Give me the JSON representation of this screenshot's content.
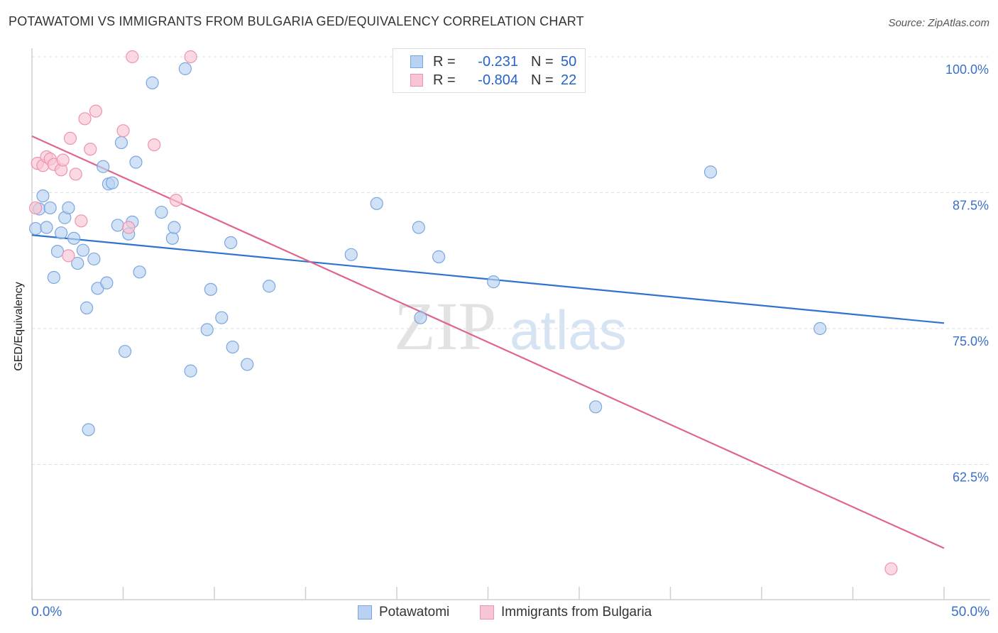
{
  "title": "POTAWATOMI VS IMMIGRANTS FROM BULGARIA GED/EQUIVALENCY CORRELATION CHART",
  "source": "Source: ZipAtlas.com",
  "watermark": {
    "zip": "ZIP",
    "atlas": "atlas"
  },
  "legend": {
    "rows": [
      {
        "r_label": "R =",
        "r_value": "-0.231",
        "n_label": "N =",
        "n_value": "50"
      },
      {
        "r_label": "R =",
        "r_value": "-0.804",
        "n_label": "N =",
        "n_value": "22"
      }
    ]
  },
  "colors": {
    "blue_fill": "#b9d2f2",
    "blue_stroke": "#7aa6df",
    "blue_line": "#2f72cf",
    "pink_fill": "#f7c5d3",
    "pink_stroke": "#ee93ae",
    "pink_line": "#e0648d",
    "tick_label": "#3a6fc9",
    "grid": "#dddddd"
  },
  "chart_data": {
    "type": "scatter",
    "title": "POTAWATOMI VS IMMIGRANTS FROM BULGARIA GED/EQUIVALENCY CORRELATION CHART",
    "xlabel": "",
    "ylabel": "GED/Equivalency",
    "xlim": [
      0,
      50
    ],
    "ylim": [
      50,
      101
    ],
    "x_tick_labels": [
      "0.0%",
      "50.0%"
    ],
    "y_ticks": [
      62.5,
      75.0,
      87.5,
      100.0
    ],
    "y_tick_labels": [
      "62.5%",
      "75.0%",
      "87.5%",
      "100.0%"
    ],
    "grid": true,
    "legend_position": "top-center",
    "series": [
      {
        "name": "Potawatomi",
        "points": [
          [
            0.2,
            84.2
          ],
          [
            0.4,
            86.0
          ],
          [
            0.6,
            87.2
          ],
          [
            0.8,
            84.3
          ],
          [
            1.0,
            86.1
          ],
          [
            1.2,
            79.7
          ],
          [
            1.4,
            82.1
          ],
          [
            1.6,
            83.8
          ],
          [
            1.8,
            85.2
          ],
          [
            2.0,
            86.1
          ],
          [
            2.3,
            83.3
          ],
          [
            2.5,
            81.0
          ],
          [
            2.8,
            82.2
          ],
          [
            3.0,
            76.9
          ],
          [
            3.1,
            65.7
          ],
          [
            3.4,
            81.4
          ],
          [
            3.6,
            78.7
          ],
          [
            3.9,
            89.9
          ],
          [
            4.1,
            79.2
          ],
          [
            4.2,
            88.3
          ],
          [
            4.4,
            88.4
          ],
          [
            4.7,
            84.5
          ],
          [
            4.9,
            92.1
          ],
          [
            5.1,
            72.9
          ],
          [
            5.3,
            83.7
          ],
          [
            5.5,
            84.8
          ],
          [
            5.7,
            90.3
          ],
          [
            5.9,
            80.2
          ],
          [
            6.6,
            97.6
          ],
          [
            7.1,
            85.7
          ],
          [
            7.7,
            83.3
          ],
          [
            7.8,
            84.3
          ],
          [
            8.4,
            98.9
          ],
          [
            8.7,
            71.1
          ],
          [
            9.6,
            74.9
          ],
          [
            9.8,
            78.6
          ],
          [
            10.4,
            76.0
          ],
          [
            10.9,
            82.9
          ],
          [
            11.0,
            73.3
          ],
          [
            11.8,
            71.7
          ],
          [
            13.0,
            78.9
          ],
          [
            17.5,
            81.8
          ],
          [
            18.9,
            86.5
          ],
          [
            21.2,
            84.3
          ],
          [
            21.3,
            76.0
          ],
          [
            22.3,
            81.6
          ],
          [
            25.3,
            79.3
          ],
          [
            30.9,
            67.8
          ],
          [
            37.2,
            89.4
          ],
          [
            43.2,
            75.0
          ]
        ]
      },
      {
        "name": "Immigrants from Bulgaria",
        "points": [
          [
            0.2,
            86.1
          ],
          [
            0.3,
            90.2
          ],
          [
            0.6,
            90.0
          ],
          [
            0.8,
            90.8
          ],
          [
            1.0,
            90.6
          ],
          [
            1.2,
            90.1
          ],
          [
            1.6,
            89.6
          ],
          [
            1.7,
            90.5
          ],
          [
            2.0,
            81.7
          ],
          [
            2.1,
            92.5
          ],
          [
            2.4,
            89.2
          ],
          [
            2.7,
            84.9
          ],
          [
            2.9,
            94.3
          ],
          [
            3.2,
            91.5
          ],
          [
            3.5,
            95.0
          ],
          [
            5.0,
            93.2
          ],
          [
            5.3,
            84.3
          ],
          [
            5.5,
            100.0
          ],
          [
            6.7,
            91.9
          ],
          [
            7.9,
            86.8
          ],
          [
            8.7,
            100.0
          ],
          [
            47.1,
            52.9
          ]
        ]
      }
    ],
    "trendlines": [
      {
        "series": "Potawatomi",
        "x": [
          0,
          50
        ],
        "y": [
          83.6,
          75.5
        ]
      },
      {
        "series": "Immigrants from Bulgaria",
        "x": [
          0,
          50
        ],
        "y": [
          92.7,
          54.8
        ]
      }
    ]
  }
}
